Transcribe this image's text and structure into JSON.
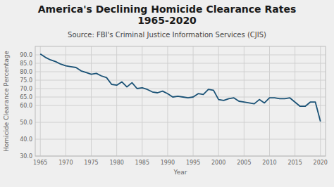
{
  "chart_data": {
    "type": "line",
    "title": "America's Declining Homicide Clearance Rates\n1965-2020",
    "subtitle": "Source: FBI's Criminal Justice Information Services (CJIS)",
    "x_label": "Year",
    "y_label": "Homicide Clearance Percentage",
    "color": "#1a5276",
    "x": [
      1965,
      1966,
      1967,
      1968,
      1969,
      1970,
      1971,
      1972,
      1973,
      1974,
      1975,
      1976,
      1977,
      1978,
      1979,
      1980,
      1981,
      1982,
      1983,
      1984,
      1985,
      1986,
      1987,
      1988,
      1989,
      1990,
      1991,
      1992,
      1993,
      1994,
      1995,
      1996,
      1997,
      1998,
      1999,
      2000,
      2001,
      2002,
      2003,
      2004,
      2005,
      2006,
      2007,
      2008,
      2009,
      2010,
      2011,
      2012,
      2013,
      2014,
      2015,
      2016,
      2017,
      2018,
      2019,
      2020
    ],
    "values": [
      90.5,
      88.5,
      87.0,
      86.0,
      84.5,
      83.5,
      83.0,
      82.5,
      80.5,
      79.5,
      78.5,
      79.0,
      77.5,
      76.5,
      72.5,
      72.0,
      74.0,
      71.0,
      73.5,
      70.0,
      70.5,
      69.5,
      68.0,
      67.5,
      68.5,
      67.0,
      65.0,
      65.5,
      65.0,
      64.5,
      65.0,
      67.0,
      66.5,
      69.5,
      69.0,
      63.5,
      63.0,
      64.0,
      64.5,
      62.5,
      62.0,
      61.5,
      61.0,
      63.5,
      61.5,
      64.5,
      64.5,
      64.0,
      64.0,
      64.5,
      62.0,
      59.5,
      59.5,
      62.0,
      62.0,
      50.5
    ],
    "xlim": [
      1964,
      2021
    ],
    "xticks": [
      1965,
      1970,
      1975,
      1980,
      1985,
      1990,
      1995,
      2000,
      2005,
      2010,
      2015,
      2020
    ],
    "ylim": [
      30,
      95
    ],
    "yticks": [
      {
        "value": 30.0,
        "label": "30.0"
      },
      {
        "value": 40.0,
        "label": "40.0"
      },
      {
        "value": 50.0,
        "label": "50.0"
      },
      {
        "value": 60.0,
        "label": "60.0"
      },
      {
        "value": 65.0,
        "label": "65.0"
      },
      {
        "value": 70.0,
        "label": "70.0"
      },
      {
        "value": 75.0,
        "label": "75.0"
      },
      {
        "value": 80.0,
        "label": "80.0"
      },
      {
        "value": 85.0,
        "label": "85.0"
      },
      {
        "value": 90.0,
        "label": "90.0"
      }
    ],
    "grid": true
  }
}
